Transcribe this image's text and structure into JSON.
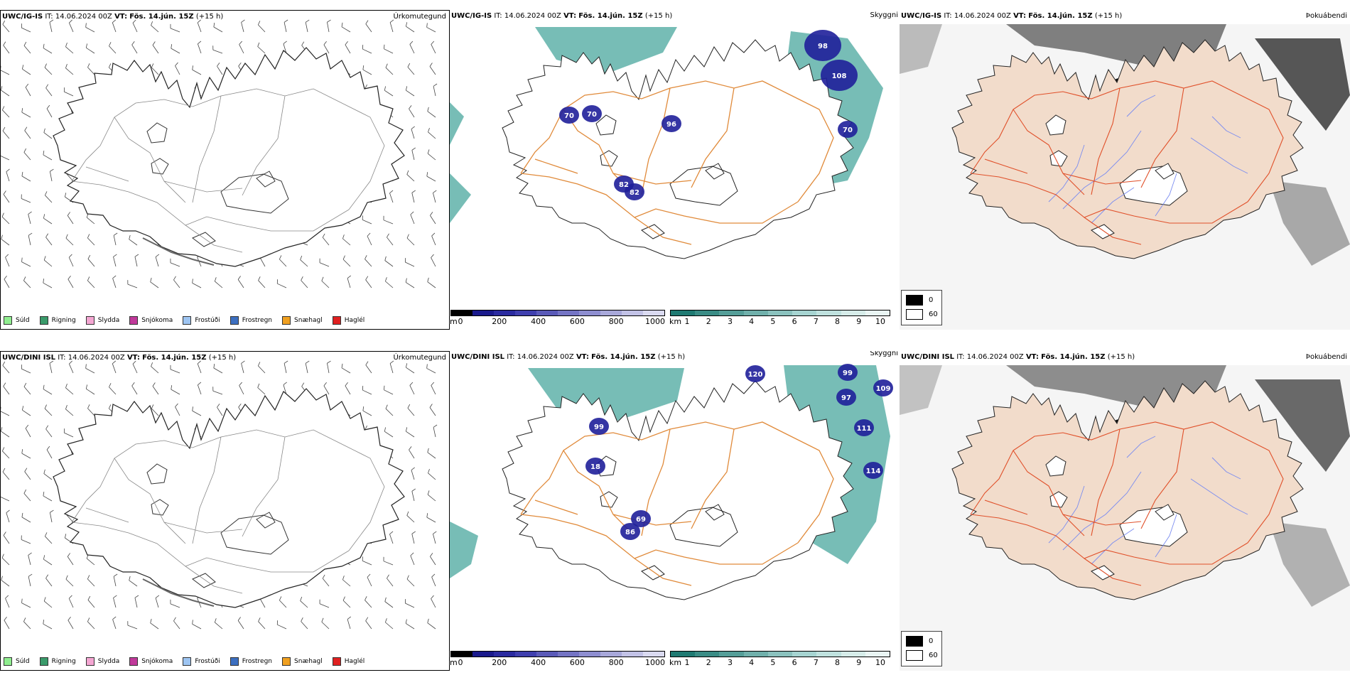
{
  "rows": [
    {
      "model": "UWC/IG-IS",
      "it_label": "IT:",
      "it_value": "14.06.2024 00Z",
      "vt_label": "VT:",
      "vt_value": "Fös. 14.jún. 15Z",
      "lead": "(+15 h)",
      "precip_type_label": "Úrkomutegund",
      "visibility_label": "Skyggni",
      "fog_label": "Þokuábendi",
      "cloud_labels": [
        "108",
        "98",
        "70",
        "70",
        "96",
        "70",
        "82",
        "82"
      ]
    },
    {
      "model": "UWC/DINI ISL",
      "it_label": "IT:",
      "it_value": "14.06.2024 00Z",
      "vt_label": "VT:",
      "vt_value": "Fös. 14.jún. 15Z",
      "lead": "(+15 h)",
      "precip_type_label": "Úrkomutegund",
      "visibility_label": "Skyggni",
      "fog_label": "Þokuábendi",
      "cloud_labels": [
        "120",
        "99",
        "109",
        "97",
        "111",
        "114",
        "99",
        "18",
        "69",
        "86"
      ]
    }
  ],
  "precip_legend": [
    {
      "label": "Súld",
      "color": "#90ee90"
    },
    {
      "label": "Rigning",
      "color": "#3a9a6a"
    },
    {
      "label": "Slydda",
      "color": "#f4a6d2"
    },
    {
      "label": "Snjókoma",
      "color": "#c0399a"
    },
    {
      "label": "Frostúði",
      "color": "#9ec5f2"
    },
    {
      "label": "Frostregn",
      "color": "#3c6fc0"
    },
    {
      "label": "Snæhagl",
      "color": "#f0a020"
    },
    {
      "label": "Haglél",
      "color": "#e02020"
    }
  ],
  "cloud_base_bar": {
    "unit": "m",
    "ticks": [
      "0",
      "200",
      "400",
      "600",
      "800",
      "1000"
    ],
    "colors": [
      "#000000",
      "#1a1a8c",
      "#2b2ba0",
      "#3f3fae",
      "#5a5ab8",
      "#7474c4",
      "#8e8ed0",
      "#a8a8da",
      "#c2c2e6",
      "#dadaf0"
    ]
  },
  "visibility_bar": {
    "unit": "km",
    "ticks": [
      "1",
      "2",
      "3",
      "4",
      "5",
      "6",
      "7",
      "8",
      "9",
      "10"
    ],
    "colors": [
      "#1f7a72",
      "#3a8c85",
      "#559e98",
      "#70b0ab",
      "#8bc2be",
      "#a6d4d1",
      "#bfe1de",
      "#d6ece9",
      "#e9f5f3"
    ]
  },
  "fog_legend": [
    {
      "label": "0",
      "color": "#000000"
    },
    {
      "label": "60",
      "color": "#ffffff"
    }
  ]
}
